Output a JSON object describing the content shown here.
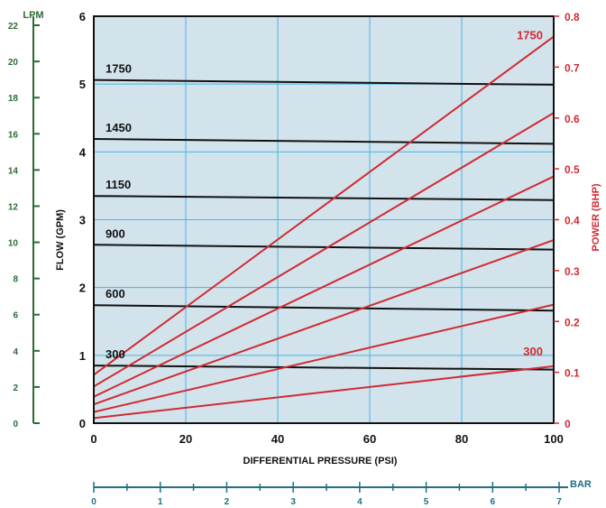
{
  "colors": {
    "plot_bg": "#d3e3ec",
    "grid": "#40b6e6",
    "flow_line": "#111111",
    "power_line": "#d12a32",
    "lpm_axis": "#2e6b34",
    "bar_axis": "#1f6f87",
    "frame": "#111111"
  },
  "chart_data": {
    "type": "line",
    "x": [
      0,
      100
    ],
    "xlabel": "DIFFERENTIAL PRESSURE (PSI)",
    "xlim": [
      0,
      100
    ],
    "xticks": [
      "0",
      "20",
      "40",
      "60",
      "80",
      "100"
    ],
    "ylabel": "FLOW (GPM)",
    "ylim": [
      0,
      6
    ],
    "yticks": [
      "0",
      "1",
      "2",
      "3",
      "4",
      "5",
      "6"
    ],
    "y2label": "POWER (BHP)",
    "y2lim": [
      0,
      0.8
    ],
    "y2ticks": [
      "0",
      "0.1",
      "0.2",
      "0.3",
      "0.4",
      "0.5",
      "0.6",
      "0.7",
      "0.8"
    ],
    "lpm_axis": {
      "label": "LPM",
      "lim": [
        0,
        22.5
      ],
      "ticks": [
        "0",
        "2",
        "4",
        "6",
        "8",
        "10",
        "12",
        "14",
        "16",
        "18",
        "20",
        "22"
      ]
    },
    "bar_axis": {
      "label": "BAR",
      "lim": [
        0,
        7
      ],
      "ticks": [
        "0",
        "1",
        "2",
        "3",
        "4",
        "5",
        "6",
        "7"
      ]
    },
    "grid": true,
    "flow_series": [
      {
        "name": "1750",
        "values": [
          5.06,
          4.99
        ]
      },
      {
        "name": "1450",
        "values": [
          4.19,
          4.12
        ]
      },
      {
        "name": "1150",
        "values": [
          3.35,
          3.29
        ]
      },
      {
        "name": "900",
        "values": [
          2.63,
          2.56
        ]
      },
      {
        "name": "600",
        "values": [
          1.74,
          1.66
        ]
      },
      {
        "name": "300",
        "values": [
          0.85,
          0.79
        ]
      }
    ],
    "power_series": [
      {
        "name": "1750",
        "values": [
          0.095,
          0.76
        ]
      },
      {
        "name": "1450",
        "values": [
          0.072,
          0.61
        ]
      },
      {
        "name": "1150",
        "values": [
          0.052,
          0.485
        ]
      },
      {
        "name": "900",
        "values": [
          0.037,
          0.36
        ]
      },
      {
        "name": "600",
        "values": [
          0.022,
          0.233
        ]
      },
      {
        "name": "300",
        "values": [
          0.01,
          0.112
        ]
      }
    ],
    "power_labels": {
      "top": "1750",
      "bottom": "300"
    }
  }
}
